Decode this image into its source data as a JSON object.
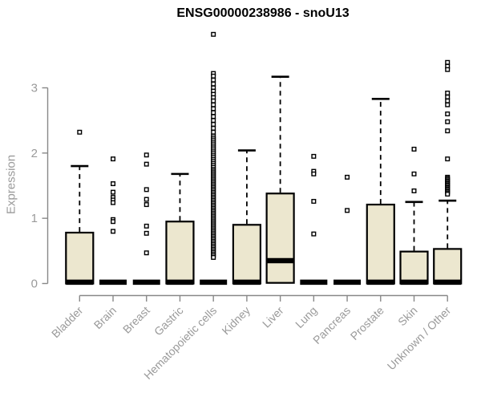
{
  "chart_data": {
    "type": "boxplot",
    "title": "ENSG00000238986 - snoU13",
    "ylabel": "Expression",
    "xlabel": "",
    "yticks": [
      0,
      1,
      2,
      3
    ],
    "ylim": [
      0,
      3.9
    ],
    "grid": false,
    "legend": false,
    "box_fill": "#ece7cf",
    "box_stroke": "#000000",
    "axis_color": "#888888",
    "tick_label_color": "#9a9a9a",
    "categories": [
      "Bladder",
      "Brain",
      "Breast",
      "Gastric",
      "Hematopoietic cells",
      "Kidney",
      "Liver",
      "Lung",
      "Pancreas",
      "Prostate",
      "Skin",
      "Unknown / Other"
    ],
    "series": [
      {
        "name": "Bladder",
        "q1": 0,
        "median": 0.02,
        "q3": 0.78,
        "whisker_low": 0,
        "whisker_high": 1.8,
        "outliers": [
          2.32
        ]
      },
      {
        "name": "Brain",
        "q1": 0,
        "median": 0.02,
        "q3": 0.02,
        "whisker_low": 0,
        "whisker_high": 0.02,
        "outliers": [
          1.91,
          1.53,
          1.4,
          1.32,
          1.28,
          1.24,
          0.98,
          0.95,
          0.8
        ]
      },
      {
        "name": "Breast",
        "q1": 0,
        "median": 0.02,
        "q3": 0.02,
        "whisker_low": 0,
        "whisker_high": 0.02,
        "outliers": [
          1.97,
          1.83,
          1.44,
          1.29,
          1.21,
          0.88,
          0.77,
          0.47
        ]
      },
      {
        "name": "Gastric",
        "q1": 0,
        "median": 0.02,
        "q3": 0.95,
        "whisker_low": 0,
        "whisker_high": 1.68,
        "outliers": []
      },
      {
        "name": "Hematopoietic cells",
        "q1": 0,
        "median": 0.02,
        "q3": 0.02,
        "whisker_low": 0,
        "whisker_high": 0.02,
        "outliers": [
          3.82,
          3.22,
          3.18,
          3.12,
          3.06,
          3.0,
          2.95,
          2.9,
          2.85,
          2.8,
          2.74,
          2.68,
          2.62,
          2.56,
          2.5,
          2.44,
          2.38,
          2.32,
          2.26,
          2.23,
          2.2,
          2.17,
          2.14,
          2.11,
          2.08,
          2.05,
          2.02,
          1.99,
          1.96,
          1.93,
          1.9,
          1.87,
          1.84,
          1.81,
          1.78,
          1.75,
          1.725,
          1.7,
          1.675,
          1.65,
          1.625,
          1.6,
          1.575,
          1.55,
          1.525,
          1.5,
          1.475,
          1.45,
          1.425,
          1.4,
          1.375,
          1.35,
          1.325,
          1.3,
          1.275,
          1.25,
          1.225,
          1.2,
          1.175,
          1.15,
          1.125,
          1.1,
          1.075,
          1.05,
          1.025,
          1.0,
          0.975,
          0.95,
          0.925,
          0.9,
          0.875,
          0.85,
          0.825,
          0.8,
          0.775,
          0.75,
          0.725,
          0.7,
          0.675,
          0.65,
          0.625,
          0.6,
          0.575,
          0.55,
          0.525,
          0.5,
          0.475,
          0.45,
          0.425,
          0.4
        ]
      },
      {
        "name": "Kidney",
        "q1": 0,
        "median": 0.02,
        "q3": 0.9,
        "whisker_low": 0,
        "whisker_high": 2.04,
        "outliers": []
      },
      {
        "name": "Liver",
        "q1": 0.01,
        "median": 0.35,
        "q3": 1.38,
        "whisker_low": 0.01,
        "whisker_high": 3.17,
        "outliers": []
      },
      {
        "name": "Lung",
        "q1": 0,
        "median": 0.02,
        "q3": 0.02,
        "whisker_low": 0,
        "whisker_high": 0.02,
        "outliers": [
          1.95,
          1.72,
          1.68,
          1.26,
          0.76
        ]
      },
      {
        "name": "Pancreas",
        "q1": 0,
        "median": 0.02,
        "q3": 0.02,
        "whisker_low": 0,
        "whisker_high": 0.02,
        "outliers": [
          1.63,
          1.12
        ]
      },
      {
        "name": "Prostate",
        "q1": 0,
        "median": 0.02,
        "q3": 1.21,
        "whisker_low": 0,
        "whisker_high": 2.83,
        "outliers": []
      },
      {
        "name": "Skin",
        "q1": 0,
        "median": 0.02,
        "q3": 0.49,
        "whisker_low": 0,
        "whisker_high": 1.25,
        "outliers": [
          2.06,
          1.68,
          1.42
        ]
      },
      {
        "name": "Unknown / Other",
        "q1": 0,
        "median": 0.02,
        "q3": 0.53,
        "whisker_low": 0,
        "whisker_high": 1.27,
        "outliers": [
          3.39,
          3.33,
          3.28,
          2.92,
          2.86,
          2.8,
          2.74,
          2.6,
          2.48,
          2.34,
          1.91,
          1.63,
          1.61,
          1.59,
          1.57,
          1.55,
          1.53,
          1.51,
          1.49,
          1.47,
          1.45,
          1.43,
          1.41,
          1.39,
          1.37
        ]
      }
    ]
  }
}
